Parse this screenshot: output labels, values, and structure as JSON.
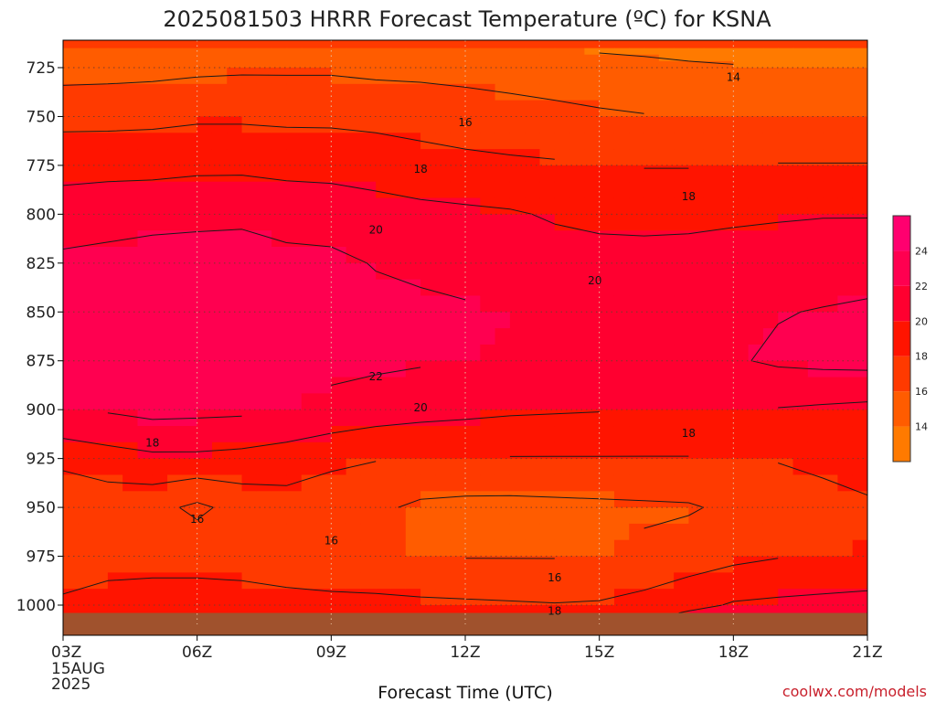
{
  "chart_data": {
    "type": "heatmap",
    "title": "2025081503 HRRR Forecast Temperature (ºC) for KSNA",
    "xlabel": "Forecast Time (UTC)",
    "ylabel": "",
    "credit": "coolwx.com/models",
    "x_ticks": [
      {
        "value": 0,
        "label": "03Z",
        "sublabels": [
          "15AUG",
          "2025"
        ]
      },
      {
        "value": 3,
        "label": "06Z",
        "sublabels": []
      },
      {
        "value": 6,
        "label": "09Z",
        "sublabels": []
      },
      {
        "value": 9,
        "label": "12Z",
        "sublabels": []
      },
      {
        "value": 12,
        "label": "15Z",
        "sublabels": []
      },
      {
        "value": 15,
        "label": "18Z",
        "sublabels": []
      },
      {
        "value": 18,
        "label": "21Z",
        "sublabels": []
      }
    ],
    "xlim": [
      0,
      18
    ],
    "y_ticks": [
      725,
      750,
      775,
      800,
      825,
      850,
      875,
      900,
      925,
      950,
      975,
      1000
    ],
    "ylim": [
      713,
      1008
    ],
    "y_reversed": true,
    "grid": true,
    "ground_level_hpa": 1004,
    "ground_color": "#a0522d",
    "colorbar": {
      "levels": [
        12,
        14,
        16,
        18,
        20,
        22,
        24,
        26
      ],
      "labels": [
        14,
        16,
        18,
        20,
        22,
        24
      ],
      "colors": [
        "#ff7a00",
        "#ff5c00",
        "#ff3a00",
        "#ff1400",
        "#ff0030",
        "#ff0050",
        "#ff006f"
      ]
    },
    "hours": [
      0,
      1,
      2,
      3,
      4,
      5,
      6,
      7,
      8,
      9,
      10,
      11,
      12,
      13,
      14,
      15,
      16,
      17,
      18
    ],
    "levels_hpa": [
      715,
      725,
      750,
      775,
      800,
      825,
      850,
      875,
      900,
      925,
      950,
      975,
      1000,
      1004
    ],
    "temperature": [
      [
        14.2,
        14.3,
        14.4,
        14.5,
        14.6,
        14.6,
        14.6,
        14.4,
        14.3,
        14.2,
        14.1,
        14.0,
        13.8,
        13.7,
        13.6,
        13.5,
        13.4,
        13.4,
        13.4
      ],
      [
        15.2,
        15.3,
        15.4,
        15.6,
        15.7,
        15.7,
        15.7,
        15.5,
        15.4,
        15.2,
        15.0,
        14.8,
        14.6,
        14.4,
        14.2,
        14.1,
        14.0,
        14.0,
        14.0
      ],
      [
        17.4,
        17.4,
        17.5,
        17.7,
        17.7,
        17.6,
        17.6,
        17.5,
        17.4,
        17.2,
        16.9,
        16.6,
        16.3,
        16.1,
        16.0,
        16.0,
        16.0,
        16.0,
        16.0
      ],
      [
        19.3,
        19.4,
        19.4,
        19.6,
        19.6,
        19.4,
        19.3,
        19.0,
        18.6,
        18.4,
        18.3,
        18.2,
        18.0,
        17.9,
        17.9,
        18.0,
        18.1,
        18.1,
        18.1
      ],
      [
        21.0,
        21.2,
        21.4,
        21.5,
        21.6,
        21.3,
        21.2,
        20.9,
        20.6,
        20.4,
        20.2,
        19.8,
        19.6,
        19.6,
        19.6,
        19.7,
        19.8,
        19.9,
        19.9
      ],
      [
        22.4,
        22.6,
        22.8,
        22.9,
        22.9,
        22.5,
        22.4,
        21.9,
        21.6,
        21.4,
        21.2,
        20.8,
        20.6,
        20.5,
        20.6,
        20.8,
        21.0,
        21.1,
        21.2
      ],
      [
        23.0,
        23.2,
        23.1,
        23.0,
        23.0,
        22.7,
        22.7,
        22.5,
        22.4,
        22.2,
        22.0,
        21.8,
        21.7,
        21.6,
        21.6,
        21.8,
        21.9,
        22.1,
        22.3
      ],
      [
        23.2,
        24.1,
        23.2,
        23.0,
        23.0,
        22.6,
        22.5,
        22.4,
        22.2,
        22.0,
        21.8,
        21.7,
        21.7,
        21.6,
        21.7,
        21.8,
        22.3,
        22.5,
        22.6
      ],
      [
        22.0,
        22.2,
        22.6,
        22.5,
        22.4,
        22.0,
        21.5,
        21.0,
        20.7,
        20.5,
        20.3,
        20.2,
        20.1,
        20.0,
        20.0,
        20.0,
        19.9,
        19.7,
        19.5
      ],
      [
        18.6,
        19.2,
        19.6,
        19.6,
        19.4,
        19.0,
        18.4,
        18.1,
        18.0,
        18.0,
        17.9,
        17.9,
        17.9,
        17.9,
        17.9,
        18.0,
        18.1,
        18.4,
        18.6
      ],
      [
        16.2,
        16.7,
        16.6,
        15.6,
        16.7,
        17.2,
        16.9,
        16.4,
        15.6,
        15.4,
        15.4,
        15.5,
        15.6,
        15.7,
        15.8,
        16.4,
        17.0,
        17.4,
        17.8
      ],
      [
        16.3,
        17.1,
        17.2,
        17.2,
        17.0,
        16.6,
        16.2,
        16.1,
        16.0,
        15.9,
        15.9,
        15.9,
        16.0,
        16.4,
        17.0,
        17.5,
        17.9,
        18.0,
        18.1
      ],
      [
        18.5,
        18.9,
        19.0,
        19.0,
        19.0,
        18.8,
        18.7,
        18.6,
        18.4,
        18.3,
        18.2,
        18.1,
        18.2,
        18.7,
        19.4,
        20.2,
        20.4,
        20.6,
        20.8
      ],
      [
        19.2,
        19.4,
        19.5,
        19.5,
        19.5,
        19.4,
        19.3,
        19.2,
        19.0,
        18.9,
        18.8,
        18.7,
        18.8,
        19.3,
        20.2,
        21.0,
        21.4,
        21.6,
        21.8
      ]
    ],
    "contour_labels": [
      {
        "text": "14",
        "x": 15.0,
        "y": 730
      },
      {
        "text": "16",
        "x": 9.0,
        "y": 753
      },
      {
        "text": "18",
        "x": 8.0,
        "y": 777
      },
      {
        "text": "18",
        "x": 14.0,
        "y": 791
      },
      {
        "text": "20",
        "x": 7.0,
        "y": 808
      },
      {
        "text": "20",
        "x": 11.9,
        "y": 834
      },
      {
        "text": "22",
        "x": 7.0,
        "y": 883
      },
      {
        "text": "20",
        "x": 8.0,
        "y": 899
      },
      {
        "text": "18",
        "x": 2.0,
        "y": 917
      },
      {
        "text": "18",
        "x": 14.0,
        "y": 912
      },
      {
        "text": "16",
        "x": 3.0,
        "y": 956
      },
      {
        "text": "16",
        "x": 6.0,
        "y": 967
      },
      {
        "text": "16",
        "x": 11.0,
        "y": 986
      },
      {
        "text": "18",
        "x": 11.0,
        "y": 1003
      }
    ]
  }
}
